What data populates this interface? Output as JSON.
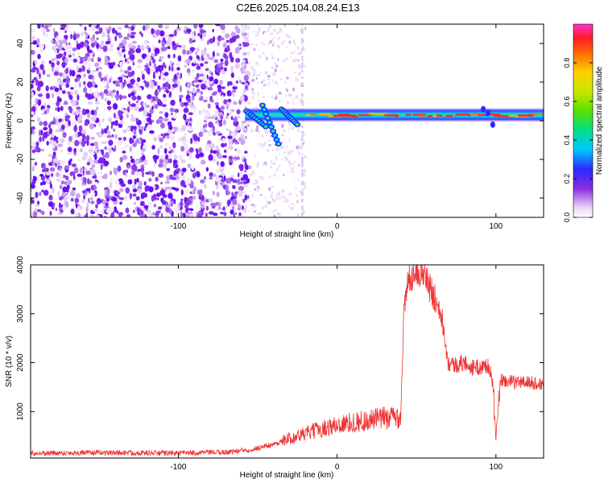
{
  "title": "C2E6.2025.104.08.24.E13",
  "chart_data": [
    {
      "type": "heatmap",
      "title": "C2E6.2025.104.08.24.E13",
      "xlabel": "Height of straight line (km)",
      "ylabel": "Frequency (Hz)",
      "xlim": [
        -193,
        130
      ],
      "ylim": [
        -50,
        50
      ],
      "x_ticks": [
        -100,
        0,
        100
      ],
      "y_ticks": [
        -40,
        -20,
        0,
        20,
        40
      ],
      "colorbar": {
        "label": "Normalized spectral amplitude",
        "ticks": [
          0.0,
          0.2,
          0.4,
          0.6,
          0.8
        ],
        "range": [
          0,
          1
        ],
        "colormap": "rainbow"
      },
      "features": {
        "noise_region_x": [
          -193,
          -60
        ],
        "sparse_region_x": [
          -60,
          -20
        ],
        "tone_center_freq": 3,
        "tone_x": [
          -58,
          130
        ],
        "chirp_segments": [
          {
            "x": [
              -57,
              -45
            ],
            "y": [
              5,
              -3
            ]
          },
          {
            "x": [
              -47,
              -37
            ],
            "y": [
              8,
              -12
            ]
          },
          {
            "x": [
              -35,
              -25
            ],
            "y": [
              6,
              -2
            ]
          }
        ],
        "vertical_stripe_x": -22
      }
    },
    {
      "type": "line",
      "xlabel": "Height of straight line (km)",
      "ylabel": "SNR (10 * v/v)",
      "xlim": [
        -193,
        130
      ],
      "ylim": [
        50,
        4000
      ],
      "x_ticks": [
        -100,
        0,
        100
      ],
      "y_ticks": [
        1000,
        2000,
        3000,
        4000
      ],
      "color": "#ee3333",
      "series": [
        {
          "x": [
            -193,
            -150,
            -100,
            -70,
            -55,
            -40,
            -30,
            -20,
            -10,
            0,
            10,
            20,
            30,
            40,
            42,
            45,
            50,
            55,
            60,
            62,
            65,
            70,
            75,
            80,
            85,
            90,
            95,
            98,
            100,
            103,
            110,
            120,
            130
          ],
          "y": [
            150,
            160,
            150,
            170,
            220,
            330,
            450,
            550,
            650,
            720,
            780,
            820,
            870,
            900,
            3000,
            3700,
            3950,
            3800,
            3400,
            3300,
            3150,
            2000,
            1950,
            2000,
            1900,
            1900,
            1950,
            1600,
            400,
            1650,
            1600,
            1600,
            1550
          ]
        }
      ]
    }
  ]
}
